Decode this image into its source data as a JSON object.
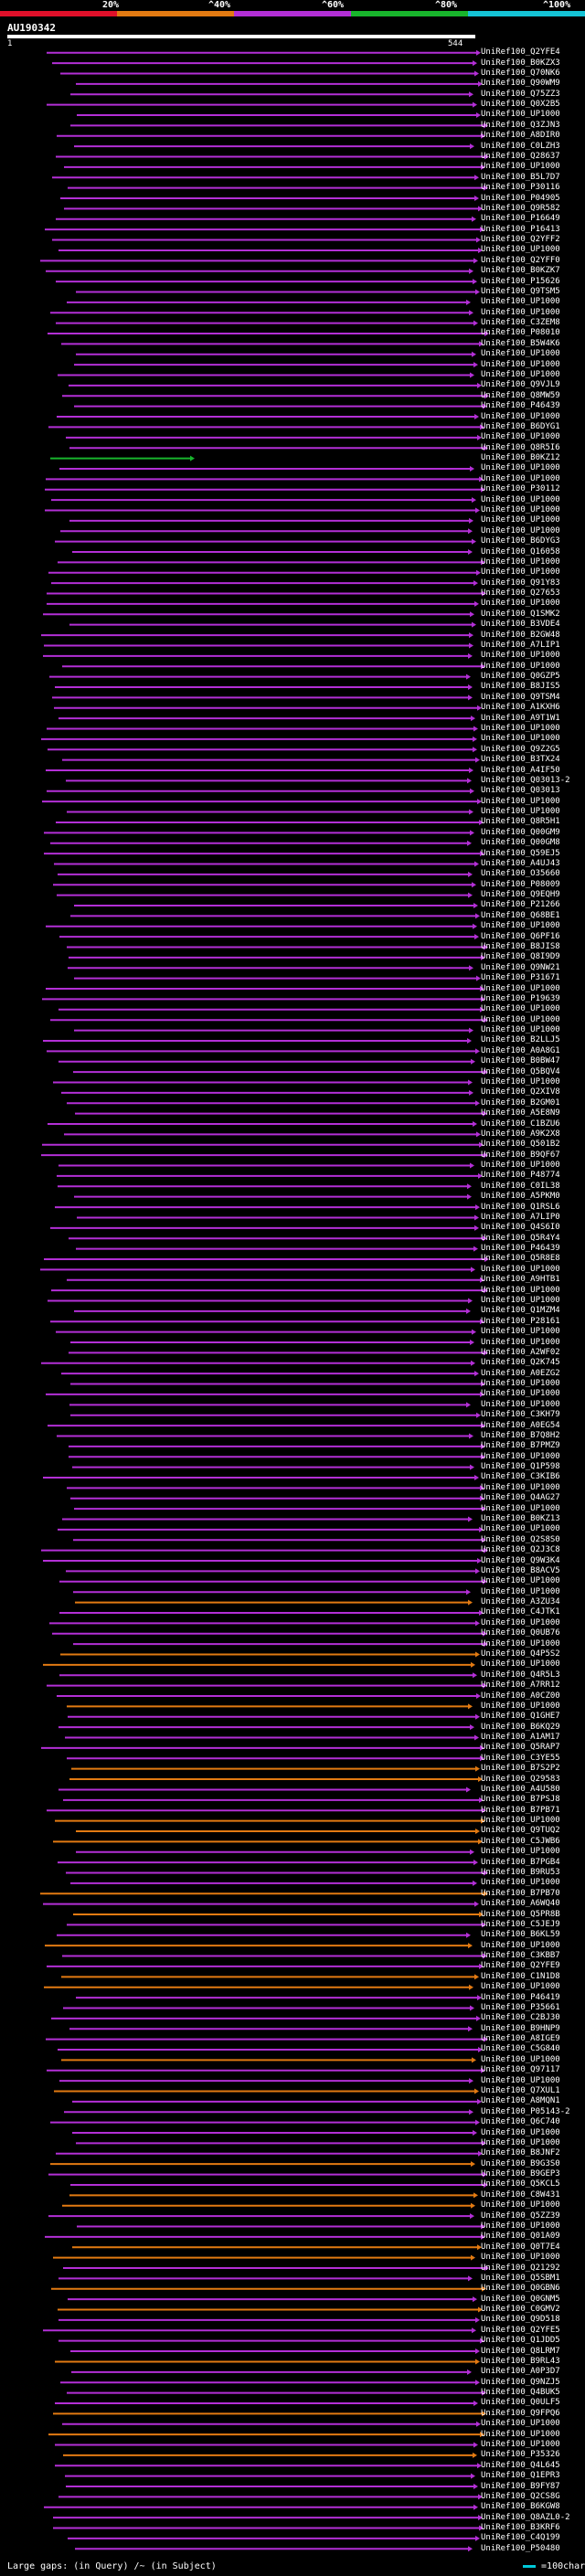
{
  "legend": {
    "ticks": [
      "20%",
      "^40%",
      "^60%",
      "^80%",
      "^100%"
    ],
    "colors": [
      "#e0102a",
      "#e27a12",
      "#b32fd6",
      "#18b52c",
      "#15c3d6"
    ]
  },
  "query": {
    "id": "AU190342",
    "start": "1",
    "end": "544"
  },
  "chart_data": {
    "type": "alignment-overview",
    "query_length": 544,
    "hits": [
      "UniRef100_Q2YFE4",
      "UniRef100_B0KZX3",
      "UniRef100_Q70NK6",
      "UniRef100_Q90WM9",
      "UniRef100_Q75ZZ3",
      "UniRef100_Q0X2B5",
      "UniRef100_UP1000",
      "UniRef100_Q3ZJN3",
      "UniRef100_A8DIR0",
      "UniRef100_C0LZH3",
      "UniRef100_Q28637",
      "UniRef100_UP1000",
      "UniRef100_B5L7D7",
      "UniRef100_P30116",
      "UniRef100_P04905",
      "UniRef100_Q9R582",
      "UniRef100_P16649",
      "UniRef100_P16413",
      "UniRef100_Q2YFF2",
      "UniRef100_UP1000",
      "UniRef100_Q2YFF0",
      "UniRef100_B0KZK7",
      "UniRef100_P15626",
      "UniRef100_Q9TSM5",
      "UniRef100_UP1000",
      "UniRef100_UP1000",
      "UniRef100_C3ZEM8",
      "UniRef100_P08010",
      "UniRef100_B5W4K6",
      "UniRef100_UP1000",
      "UniRef100_UP1000",
      "UniRef100_UP1000",
      "UniRef100_Q9VJL9",
      "UniRef100_Q8MW59",
      "UniRef100_P46439",
      "UniRef100_UP1000",
      "UniRef100_B6DYG1",
      "UniRef100_UP1000",
      "UniRef100_Q8R5I6",
      "UniRef100_B0KZ12",
      "UniRef100_UP1000",
      "UniRef100_UP1000",
      "UniRef100_P30112",
      "UniRef100_UP1000",
      "UniRef100_UP1000",
      "UniRef100_UP1000",
      "UniRef100_UP1000",
      "UniRef100_B6DYG3",
      "UniRef100_Q16058",
      "UniRef100_UP1000",
      "UniRef100_UP1000",
      "UniRef100_Q91Y83",
      "UniRef100_Q27653",
      "UniRef100_UP1000",
      "UniRef100_Q1SMK2",
      "UniRef100_B3VDE4",
      "UniRef100_B2GW48",
      "UniRef100_A7LIP1",
      "UniRef100_UP1000",
      "UniRef100_UP1000",
      "UniRef100_Q0GZP5",
      "UniRef100_B8JIS5",
      "UniRef100_Q9TSM4",
      "UniRef100_A1KXH6",
      "UniRef100_A9T1W1",
      "UniRef100_UP1000",
      "UniRef100_UP1000",
      "UniRef100_Q9Z2G5",
      "UniRef100_B3TX24",
      "UniRef100_A4IF50",
      "UniRef100_Q03013-2",
      "UniRef100_Q03013",
      "UniRef100_UP1000",
      "UniRef100_UP1000",
      "UniRef100_Q8R5H1",
      "UniRef100_Q00GM9",
      "UniRef100_Q00GM8",
      "UniRef100_Q59EJ5",
      "UniRef100_A4UJ43",
      "UniRef100_O35660",
      "UniRef100_P08009",
      "UniRef100_Q9EQH9",
      "UniRef100_P21266",
      "UniRef100_Q68BE1",
      "UniRef100_UP1000",
      "UniRef100_Q6PF16",
      "UniRef100_B8JIS8",
      "UniRef100_Q8I9D9",
      "UniRef100_Q9NW21",
      "UniRef100_P31671",
      "UniRef100_UP1000",
      "UniRef100_P19639",
      "UniRef100_UP1000",
      "UniRef100_UP1000",
      "UniRef100_UP1000",
      "UniRef100_B2LLJ5",
      "UniRef100_A0A8G1",
      "UniRef100_B0BW47",
      "UniRef100_Q5BQV4",
      "UniRef100_UP1000",
      "UniRef100_Q2XIV8",
      "UniRef100_B2GM01",
      "UniRef100_A5E8N9",
      "UniRef100_C1BZU6",
      "UniRef100_A9K2X8",
      "UniRef100_Q501B2",
      "UniRef100_B9QF67",
      "UniRef100_UP1000",
      "UniRef100_P48774",
      "UniRef100_C0IL38",
      "UniRef100_A5PKM0",
      "UniRef100_Q1RSL6",
      "UniRef100_A7LIP0",
      "UniRef100_Q4S6I0",
      "UniRef100_Q5R4Y4",
      "UniRef100_P46439",
      "UniRef100_Q5R8E8",
      "UniRef100_UP1000",
      "UniRef100_A9HTB1",
      "UniRef100_UP1000",
      "UniRef100_UP1000",
      "UniRef100_Q1MZM4",
      "UniRef100_P28161",
      "UniRef100_UP1000",
      "UniRef100_UP1000",
      "UniRef100_A2WF02",
      "UniRef100_Q2K745",
      "UniRef100_A0EZG2",
      "UniRef100_UP1000",
      "UniRef100_UP1000",
      "UniRef100_UP1000",
      "UniRef100_C3KH79",
      "UniRef100_A0EG54",
      "UniRef100_B7Q8H2",
      "UniRef100_B7PMZ9",
      "UniRef100_UP1000",
      "UniRef100_Q1P598",
      "UniRef100_C3KIB6",
      "UniRef100_UP1000",
      "UniRef100_Q4AG27",
      "UniRef100_UP1000",
      "UniRef100_B0KZ13",
      "UniRef100_UP1000",
      "UniRef100_Q2S8S0",
      "UniRef100_Q2J3C8",
      "UniRef100_Q9W3K4",
      "UniRef100_B8ACV5",
      "UniRef100_UP1000",
      "UniRef100_UP1000",
      "UniRef100_A3ZU34",
      "UniRef100_C4JTK1",
      "UniRef100_UP1000",
      "UniRef100_Q0UB76",
      "UniRef100_UP1000",
      "UniRef100_Q4P5S2",
      "UniRef100_UP1000",
      "UniRef100_Q4R5L3",
      "UniRef100_A7RR12",
      "UniRef100_A0CZ00",
      "UniRef100_UP1000",
      "UniRef100_Q1GHE7",
      "UniRef100_B6KQ29",
      "UniRef100_A1AM17",
      "UniRef100_Q5RAP7",
      "UniRef100_C3YE55",
      "UniRef100_B7S2P2",
      "UniRef100_Q29583",
      "UniRef100_A4U580",
      "UniRef100_B7PSJ8",
      "UniRef100_B7PB71",
      "UniRef100_UP1000",
      "UniRef100_Q9TUQ2",
      "UniRef100_C5JWB6",
      "UniRef100_UP1000",
      "UniRef100_B7PGB4",
      "UniRef100_B9RU53",
      "UniRef100_UP1000",
      "UniRef100_B7PB70",
      "UniRef100_A6WQ40",
      "UniRef100_Q5PR8B",
      "UniRef100_C5JEJ9",
      "UniRef100_B6KL59",
      "UniRef100_UP1000",
      "UniRef100_C3KBB7",
      "UniRef100_Q2YFE9",
      "UniRef100_C1N1D8",
      "UniRef100_UP1000",
      "UniRef100_P46419",
      "UniRef100_P35661",
      "UniRef100_C2BJ30",
      "UniRef100_B9HNP9",
      "UniRef100_A8IGE9",
      "UniRef100_C5G840",
      "UniRef100_UP1000",
      "UniRef100_Q97117",
      "UniRef100_UP1000",
      "UniRef100_Q7XUL1",
      "UniRef100_A8MQN1",
      "UniRef100_P05143-2",
      "UniRef100_Q6C740",
      "UniRef100_UP1000",
      "UniRef100_UP1000",
      "UniRef100_B8JNF2",
      "UniRef100_B9G3S0",
      "UniRef100_B9GEP3",
      "UniRef100_Q5KCL5",
      "UniRef100_C8W431",
      "UniRef100_UP1000",
      "UniRef100_Q5ZZ39",
      "UniRef100_UP1000",
      "UniRef100_Q01A09",
      "UniRef100_Q0T7E4",
      "UniRef100_UP1000",
      "UniRef100_Q21292",
      "UniRef100_Q5SBM1",
      "UniRef100_Q0GBN6",
      "UniRef100_Q0GNM5",
      "UniRef100_C0GMV2",
      "UniRef100_Q9D518",
      "UniRef100_Q2YFE5",
      "UniRef100_Q1JDD5",
      "UniRef100_Q8LRM7",
      "UniRef100_B9RL43",
      "UniRef100_A0P3D7",
      "UniRef100_Q9NZJ5",
      "UniRef100_Q4BUK5",
      "UniRef100_Q0ULF5",
      "UniRef100_Q9FPQ6",
      "UniRef100_UP1000",
      "UniRef100_UP1000",
      "UniRef100_UP1000",
      "UniRef100_P35326",
      "UniRef100_Q4L645",
      "UniRef100_Q1EPR3",
      "UniRef100_B9FY87",
      "UniRef100_Q2CS8G",
      "UniRef100_B6KGW8",
      "UniRef100_Q8AZL0-2",
      "UniRef100_B3KRF6",
      "UniRef100_C4Q199",
      "UniRef100_P50480"
    ]
  },
  "footer": {
    "large_gaps": "Large gaps:",
    "in_query": "(in Query)",
    "in_subject": "/~ (in Subject)",
    "scale": "=100char."
  }
}
